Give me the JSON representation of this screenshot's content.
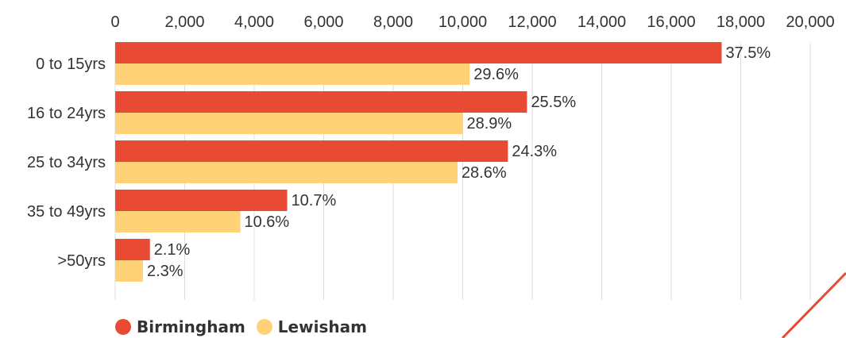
{
  "chart_data": {
    "type": "bar",
    "orientation": "horizontal",
    "categories": [
      "0 to 15yrs",
      "16 to 24yrs",
      "25 to 34yrs",
      "35 to 49yrs",
      ">50yrs"
    ],
    "series": [
      {
        "name": "Birmingham",
        "color": "#E84A33",
        "values": [
          17450,
          11850,
          11300,
          4950,
          1000
        ],
        "labels": [
          "37.5%",
          "25.5%",
          "24.3%",
          "10.7%",
          "2.1%"
        ]
      },
      {
        "name": "Lewisham",
        "color": "#FFD277",
        "values": [
          10200,
          10000,
          9850,
          3600,
          800
        ],
        "labels": [
          "29.6%",
          "28.9%",
          "28.6%",
          "10.6%",
          "2.3%"
        ]
      }
    ],
    "xlim": [
      0,
      20000
    ],
    "xticks": [
      0,
      2000,
      4000,
      6000,
      8000,
      10000,
      12000,
      14000,
      16000,
      18000,
      20000
    ],
    "xtick_labels": [
      "0",
      "2,000",
      "4,000",
      "6,000",
      "8,000",
      "10,000",
      "12,000",
      "14,000",
      "16,000",
      "18,000",
      "20,000"
    ],
    "x_axis_position": "top",
    "grid": true,
    "legend_position": "bottom-left"
  },
  "decoration": {
    "accent_line_color": "#E84A33"
  }
}
